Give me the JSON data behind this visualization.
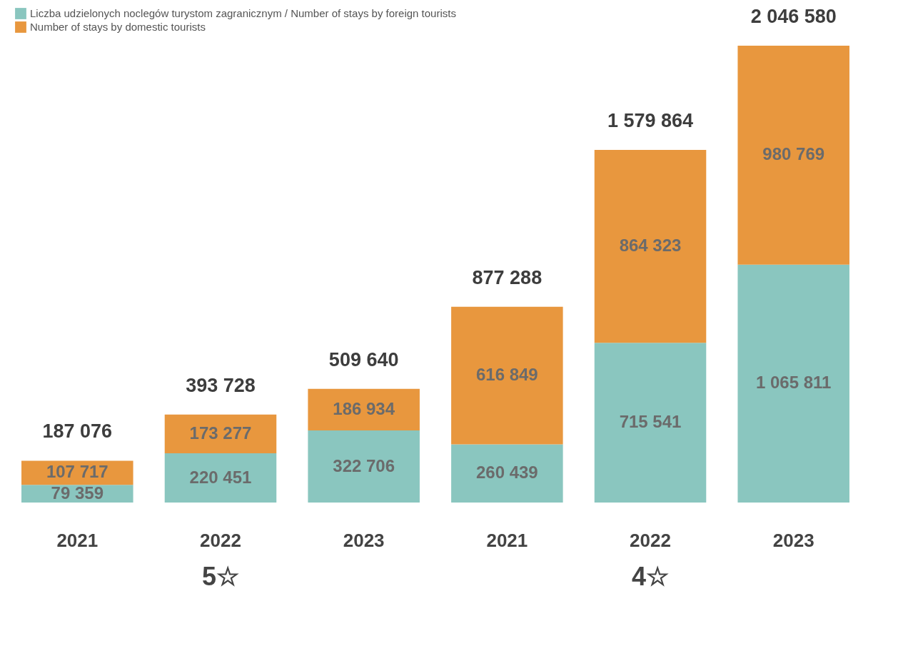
{
  "chart_data": {
    "type": "bar",
    "stacked": true,
    "categories": [
      "2021",
      "2022",
      "2023",
      "2021",
      "2022",
      "2023"
    ],
    "series": [
      {
        "name": "Liczba udzielonych noclegów turystom zagranicznym / Number of stays by foreign tourists",
        "color": "#8ac6bf",
        "values": [
          79359,
          220451,
          322706,
          260439,
          715541,
          1065811
        ],
        "value_labels": [
          "79 359",
          "220 451",
          "322 706",
          "260 439",
          "715 541",
          "1 065 811"
        ]
      },
      {
        "name": "Number of stays by domestic tourists",
        "color": "#e8973e",
        "values": [
          107717,
          173277,
          186934,
          616849,
          864323,
          980769
        ],
        "value_labels": [
          "107 717",
          "173 277",
          "186 934",
          "616 849",
          "864 323",
          "980 769"
        ]
      }
    ],
    "totals": [
      "187 076",
      "393 728",
      "509 640",
      "877 288",
      "1 579 864",
      "2 046 580"
    ],
    "legend": "top left",
    "annotations": [
      "5☆",
      "4☆"
    ]
  }
}
